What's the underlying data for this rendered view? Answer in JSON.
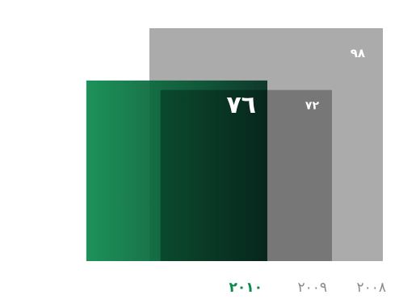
{
  "chart_data": {
    "type": "bar",
    "series_style": "overlapping-squares",
    "categories": [
      "٢٠٠٨",
      "٢٠٠٩",
      "٢٠١٠"
    ],
    "values": [
      98,
      72,
      76
    ],
    "value_labels": [
      "٩٨",
      "٧٢",
      "٧٦"
    ],
    "highlight_index": 2,
    "colors": {
      "2008": "#a6a6a6",
      "2009": "#707070",
      "2010_start": "#0b8a4c",
      "2010_end": "#033022",
      "highlight_text": "#0b8a4c",
      "muted_text": "#8a8a8a",
      "label_text": "#ffffff"
    },
    "title": "",
    "xlabel": "",
    "ylabel": ""
  }
}
